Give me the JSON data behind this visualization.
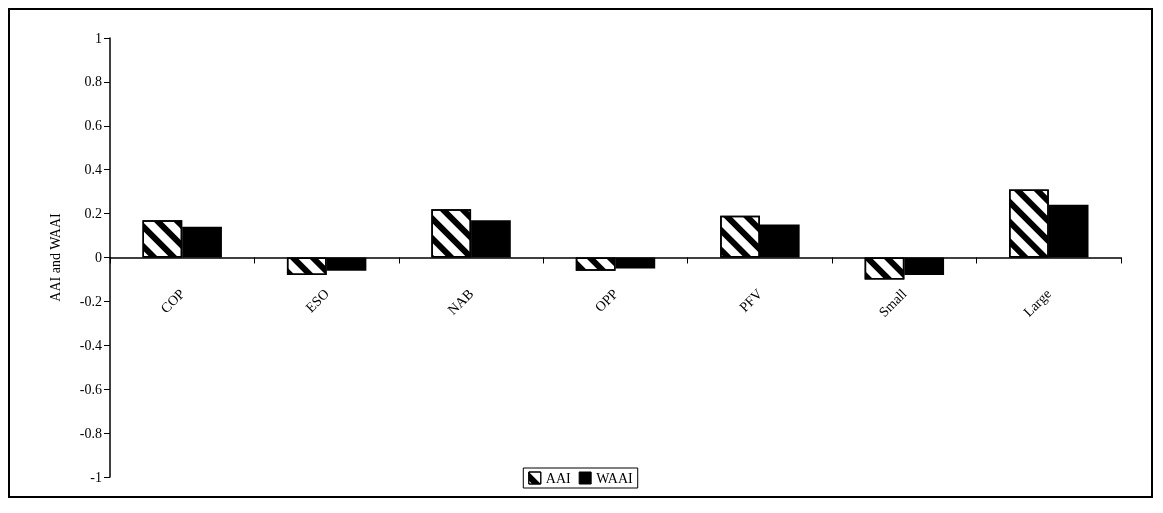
{
  "chart_data": {
    "type": "bar",
    "ylabel": "AAI and WAAI",
    "categories": [
      "COP",
      "ESO",
      "NAB",
      "OPP",
      "PFV",
      "Small",
      "Large"
    ],
    "series": [
      {
        "name": "AAI",
        "color": "#ffffff",
        "values": [
          0.17,
          -0.08,
          0.22,
          -0.06,
          0.19,
          -0.1,
          0.31
        ]
      },
      {
        "name": "WAAI",
        "color": "#000000",
        "values": [
          0.14,
          -0.06,
          0.17,
          -0.05,
          0.15,
          -0.08,
          0.24
        ]
      }
    ],
    "ylim": [
      -1,
      1
    ],
    "yticks": [
      -1,
      -0.8,
      -0.6,
      -0.4,
      -0.2,
      0,
      0.2,
      0.4,
      0.6,
      0.8,
      1
    ],
    "grid": false,
    "legend": "bottom"
  }
}
